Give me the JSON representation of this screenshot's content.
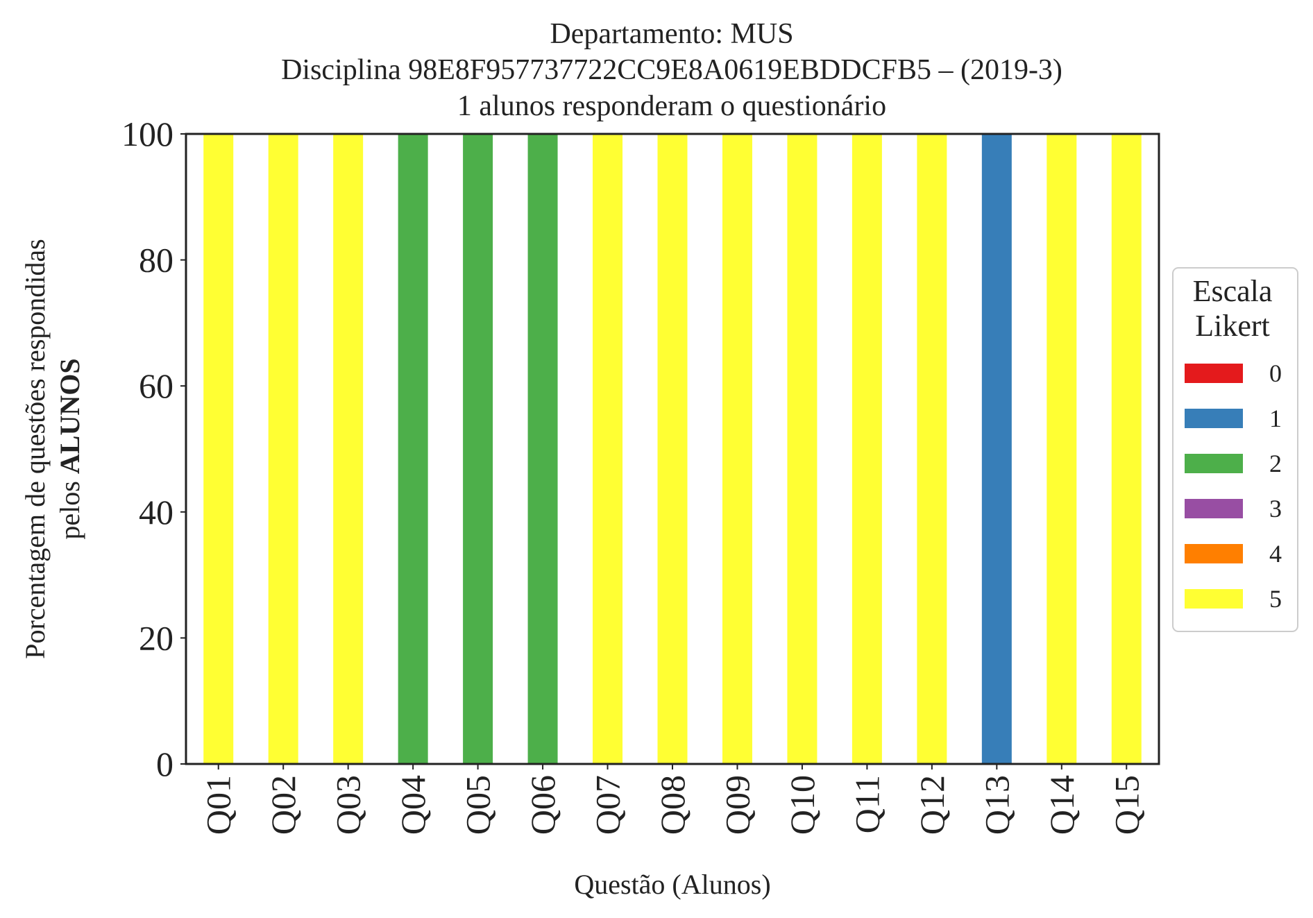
{
  "chart_data": {
    "type": "bar",
    "stacked": true,
    "title_lines": [
      "Departamento: MUS",
      "Disciplina 98E8F957737722CC9E8A0619EBDDCFB5 – (2019-3)",
      "1 alunos responderam o questionário"
    ],
    "xlabel": "Questão (Alunos)",
    "ylabel_line1": "Porcentagem de questões respondidas",
    "ylabel_line2_prefix": "pelos ",
    "ylabel_line2_bold": "ALUNOS",
    "ylim": [
      0,
      100
    ],
    "yticks": [
      "0",
      "20",
      "40",
      "60",
      "80",
      "100"
    ],
    "categories": [
      "Q01",
      "Q02",
      "Q03",
      "Q04",
      "Q05",
      "Q06",
      "Q07",
      "Q08",
      "Q09",
      "Q10",
      "Q11",
      "Q12",
      "Q13",
      "Q14",
      "Q15"
    ],
    "series": [
      {
        "name": "0",
        "color": "#e41a1c",
        "values": [
          0,
          0,
          0,
          0,
          0,
          0,
          0,
          0,
          0,
          0,
          0,
          0,
          0,
          0,
          0
        ]
      },
      {
        "name": "1",
        "color": "#377eb8",
        "values": [
          0,
          0,
          0,
          0,
          0,
          0,
          0,
          0,
          0,
          0,
          0,
          0,
          100,
          0,
          0
        ]
      },
      {
        "name": "2",
        "color": "#4daf4a",
        "values": [
          0,
          0,
          0,
          100,
          100,
          100,
          0,
          0,
          0,
          0,
          0,
          0,
          0,
          0,
          0
        ]
      },
      {
        "name": "3",
        "color": "#984ea3",
        "values": [
          0,
          0,
          0,
          0,
          0,
          0,
          0,
          0,
          0,
          0,
          0,
          0,
          0,
          0,
          0
        ]
      },
      {
        "name": "4",
        "color": "#ff7f00",
        "values": [
          0,
          0,
          0,
          0,
          0,
          0,
          0,
          0,
          0,
          0,
          0,
          0,
          0,
          0,
          0
        ]
      },
      {
        "name": "5",
        "color": "#ffff33",
        "values": [
          100,
          100,
          100,
          0,
          0,
          0,
          100,
          100,
          100,
          100,
          100,
          100,
          0,
          100,
          100
        ]
      }
    ],
    "legend": {
      "title_lines": [
        "Escala",
        "Likert"
      ],
      "placement": "right-center"
    },
    "grid": false
  }
}
